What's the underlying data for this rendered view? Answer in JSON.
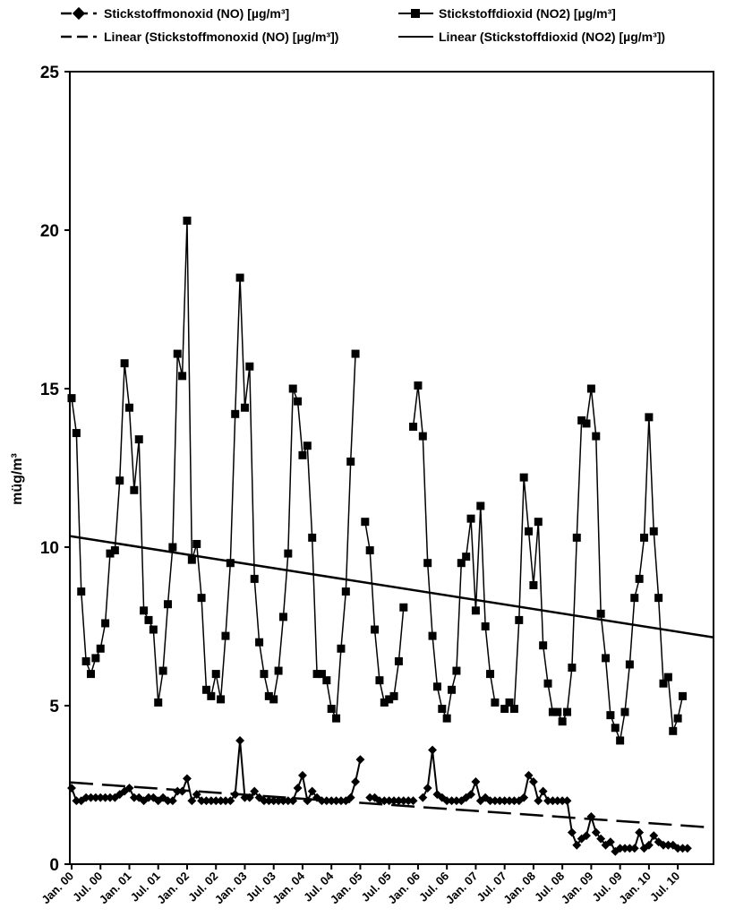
{
  "chart_data": {
    "type": "line",
    "title": "",
    "xlabel": "",
    "ylabel": "müg/m³",
    "ylim": [
      0,
      25
    ],
    "y_ticks": [
      "0",
      "5",
      "10",
      "15",
      "20",
      "25"
    ],
    "x_tick_labels": [
      "Jan. 00",
      "Jul. 00",
      "Jan. 01",
      "Jul. 01",
      "Jan. 02",
      "Jul. 02",
      "Jan. 03",
      "Jul. 03",
      "Jan. 04",
      "Jul. 04",
      "Jan. 05",
      "Jul. 05",
      "Jan. 06",
      "Jul. 06",
      "Jan. 07",
      "Jul. 07",
      "Jan. 08",
      "Jul. 08",
      "Jan. 09",
      "Jul. 09",
      "Jan. 10",
      "Jul. 10"
    ],
    "x_months_from": "2000-01",
    "x_months_to": "2010-12",
    "legend_position": "top",
    "grid": false,
    "series": [
      {
        "name": "Stickstoffmonoxid (NO) [µg/m³]",
        "marker": "diamond",
        "values": [
          2.4,
          2.0,
          2.0,
          2.1,
          2.1,
          2.1,
          2.1,
          2.1,
          2.1,
          2.1,
          2.2,
          2.3,
          2.4,
          2.1,
          2.1,
          2.0,
          2.1,
          2.1,
          2.0,
          2.1,
          2.0,
          2.0,
          2.3,
          2.3,
          2.7,
          2.0,
          2.2,
          2.0,
          2.0,
          2.0,
          2.0,
          2.0,
          2.0,
          2.0,
          2.2,
          3.9,
          2.1,
          2.1,
          2.3,
          2.1,
          2.0,
          2.0,
          2.0,
          2.0,
          2.0,
          2.0,
          2.0,
          2.4,
          2.8,
          2.0,
          2.3,
          2.1,
          2.0,
          2.0,
          2.0,
          2.0,
          2.0,
          2.0,
          2.1,
          2.6,
          3.3,
          null,
          2.1,
          2.1,
          2.0,
          2.0,
          2.0,
          2.0,
          2.0,
          2.0,
          2.0,
          2.0,
          null,
          2.1,
          2.4,
          3.6,
          2.2,
          2.1,
          2.0,
          2.0,
          2.0,
          2.0,
          2.1,
          2.2,
          2.6,
          2.0,
          2.1,
          2.0,
          2.0,
          2.0,
          2.0,
          2.0,
          2.0,
          2.0,
          2.1,
          2.8,
          2.6,
          2.0,
          2.3,
          2.0,
          2.0,
          2.0,
          2.0,
          2.0,
          1.0,
          0.6,
          0.8,
          0.9,
          1.5,
          1.0,
          0.8,
          0.6,
          0.7,
          0.4,
          0.5,
          0.5,
          0.5,
          0.5,
          1.0,
          0.5,
          0.6,
          0.9,
          0.7,
          0.6,
          0.6,
          0.6,
          0.5,
          0.5,
          0.5,
          null,
          null,
          null
        ],
        "trend_name": "Linear (Stickstoffmonoxid (NO) [µg/m³])",
        "trend_style": "dashed",
        "trend": [
          2.58,
          1.15
        ]
      },
      {
        "name": "Stickstoffdioxid (NO2) [µg/m³]",
        "marker": "square",
        "values": [
          14.7,
          13.6,
          8.6,
          6.4,
          6.0,
          6.5,
          6.8,
          7.6,
          9.8,
          9.9,
          12.1,
          15.8,
          14.4,
          11.8,
          13.4,
          8.0,
          7.7,
          7.4,
          5.1,
          6.1,
          8.2,
          10.0,
          16.1,
          15.4,
          20.3,
          9.6,
          10.1,
          8.4,
          5.5,
          5.3,
          6.0,
          5.2,
          7.2,
          9.5,
          14.2,
          18.5,
          14.4,
          15.7,
          9.0,
          7.0,
          6.0,
          5.3,
          5.2,
          6.1,
          7.8,
          9.8,
          15.0,
          14.6,
          12.9,
          13.2,
          10.3,
          6.0,
          6.0,
          5.8,
          4.9,
          4.6,
          6.8,
          8.6,
          12.7,
          16.1,
          null,
          10.8,
          9.9,
          7.4,
          5.8,
          5.1,
          5.2,
          5.3,
          6.4,
          8.1,
          null,
          13.8,
          15.1,
          13.5,
          9.5,
          7.2,
          5.6,
          4.9,
          4.6,
          5.5,
          6.1,
          9.5,
          9.7,
          10.9,
          8.0,
          11.3,
          7.5,
          6.0,
          5.1,
          null,
          4.9,
          5.1,
          4.9,
          7.7,
          12.2,
          10.5,
          8.8,
          10.8,
          6.9,
          5.7,
          4.8,
          4.8,
          4.5,
          4.8,
          6.2,
          10.3,
          14.0,
          13.9,
          15.0,
          13.5,
          7.9,
          6.5,
          4.7,
          4.3,
          3.9,
          4.8,
          6.3,
          8.4,
          9.0,
          10.3,
          14.1,
          10.5,
          8.4,
          5.7,
          5.9,
          4.2,
          4.6,
          5.3,
          null,
          null,
          null
        ],
        "trend_name": "Linear (Stickstoffdioxid (NO2) [µg/m³])",
        "trend_style": "solid",
        "trend": [
          10.35,
          7.15
        ]
      }
    ]
  }
}
